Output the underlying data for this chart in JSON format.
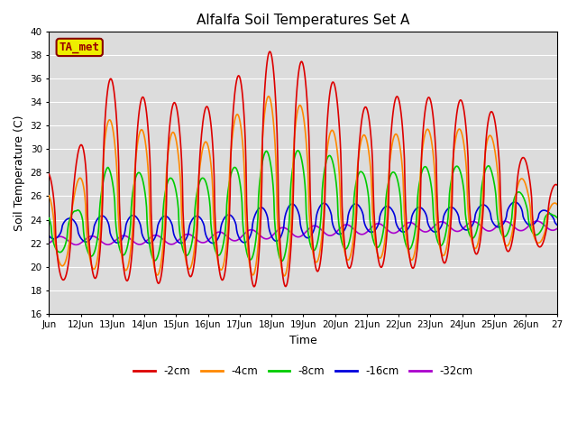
{
  "title": "Alfalfa Soil Temperatures Set A",
  "xlabel": "Time",
  "ylabel": "Soil Temperature (C)",
  "ylim": [
    16,
    40
  ],
  "yticks": [
    16,
    18,
    20,
    22,
    24,
    26,
    28,
    30,
    32,
    34,
    36,
    38,
    40
  ],
  "xtick_labels": [
    "Jun",
    "12Jun",
    "13Jun",
    "14Jun",
    "15Jun",
    "16Jun",
    "17Jun",
    "18Jun",
    "19Jun",
    "20Jun",
    "21Jun",
    "22Jun",
    "23Jun",
    "24Jun",
    "25Jun",
    "26Jun",
    "27"
  ],
  "bg_color": "#dcdcdc",
  "series": {
    "-2cm": {
      "color": "#dd0000",
      "linewidth": 1.2
    },
    "-4cm": {
      "color": "#ff8800",
      "linewidth": 1.2
    },
    "-8cm": {
      "color": "#00cc00",
      "linewidth": 1.2
    },
    "-16cm": {
      "color": "#0000dd",
      "linewidth": 1.2
    },
    "-32cm": {
      "color": "#aa00cc",
      "linewidth": 1.2
    }
  },
  "annotation": {
    "text": "TA_met",
    "fontsize": 9,
    "color": "#990000",
    "bg": "#eeee00",
    "border_color": "#880000"
  },
  "n_days": 16,
  "peak_times_2cm": [
    0.7,
    1.7,
    2.7,
    3.7,
    4.7,
    5.7,
    6.7,
    7.7,
    8.7,
    9.7,
    10.7,
    11.7,
    12.7,
    13.7,
    14.7,
    15.7
  ],
  "peak_vals_2cm": [
    28,
    36.5,
    34.5,
    34.3,
    33,
    35.5,
    38.5,
    37.8,
    36.5,
    33.3,
    34.5,
    34.5,
    34.2,
    34.2,
    30,
    27
  ],
  "trough_times_2cm": [
    0.2,
    1.2,
    2.2,
    3.2,
    4.2,
    5.2,
    6.2,
    7.2,
    8.2,
    9.2,
    10.2,
    11.2,
    12.2,
    13.2,
    14.2,
    15.2,
    16.0
  ],
  "trough_vals_2cm": [
    18.5,
    19,
    19,
    18.3,
    19.2,
    19,
    18.5,
    17.8,
    19.5,
    19.8,
    20,
    19.8,
    20,
    21,
    21.2,
    21.5,
    22
  ]
}
